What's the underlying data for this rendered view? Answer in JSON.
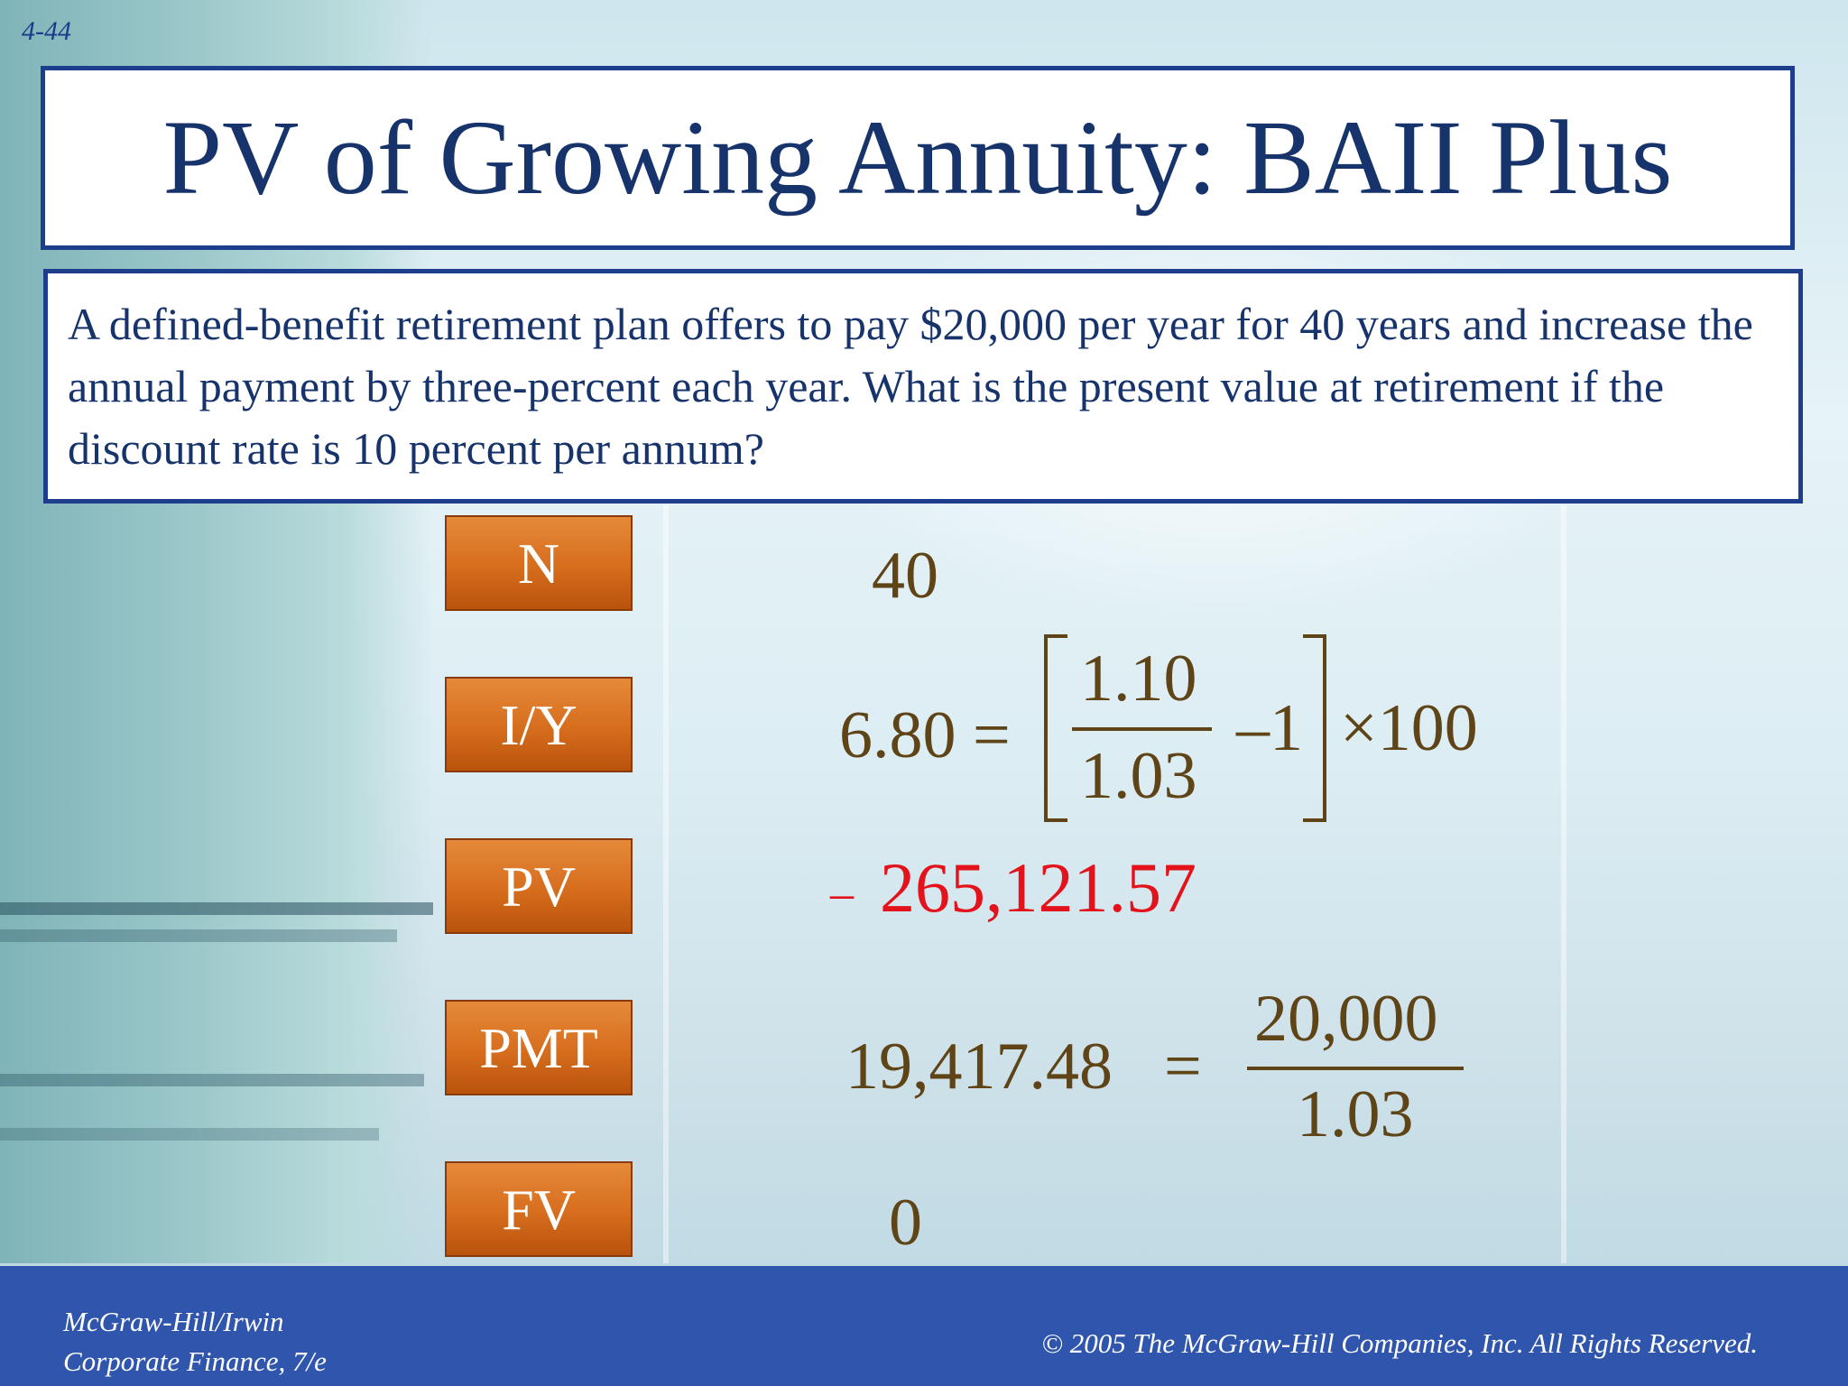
{
  "slide": {
    "number": "4-44",
    "title": "PV of Growing Annuity: BAII Plus",
    "question": "A defined-benefit retirement plan offers to pay $20,000 per year for 40 years and increase the annual payment by three-percent each year. What is the present value at retirement if the discount rate is 10 percent per annum?"
  },
  "calculator": {
    "keys": [
      "N",
      "I/Y",
      "PV",
      "PMT",
      "FV"
    ],
    "n_value": "40",
    "iy_value": "6.80 =",
    "iy_numerator": "1.10",
    "iy_denominator": "1.03",
    "iy_minus_one": "–1",
    "iy_times": "×100",
    "pv_sign": "–",
    "pv_value": "265,121.57",
    "pmt_value": "19,417.48",
    "pmt_equals": "=",
    "pmt_numerator": "20,000",
    "pmt_denominator": "1.03",
    "fv_value": "0"
  },
  "footer": {
    "publisher": "McGraw-Hill/Irwin",
    "book": "Corporate Finance, 7/e",
    "copyright": "© 2005  The McGraw-Hill Companies, Inc.  All Rights Reserved."
  },
  "colors": {
    "title_text": "#16336b",
    "box_border": "#1d3e8c",
    "key_fill": "#d66d1d",
    "value_text": "#5e4416",
    "pv_text": "#e3121b",
    "footer_bg": "#2f55ad"
  }
}
